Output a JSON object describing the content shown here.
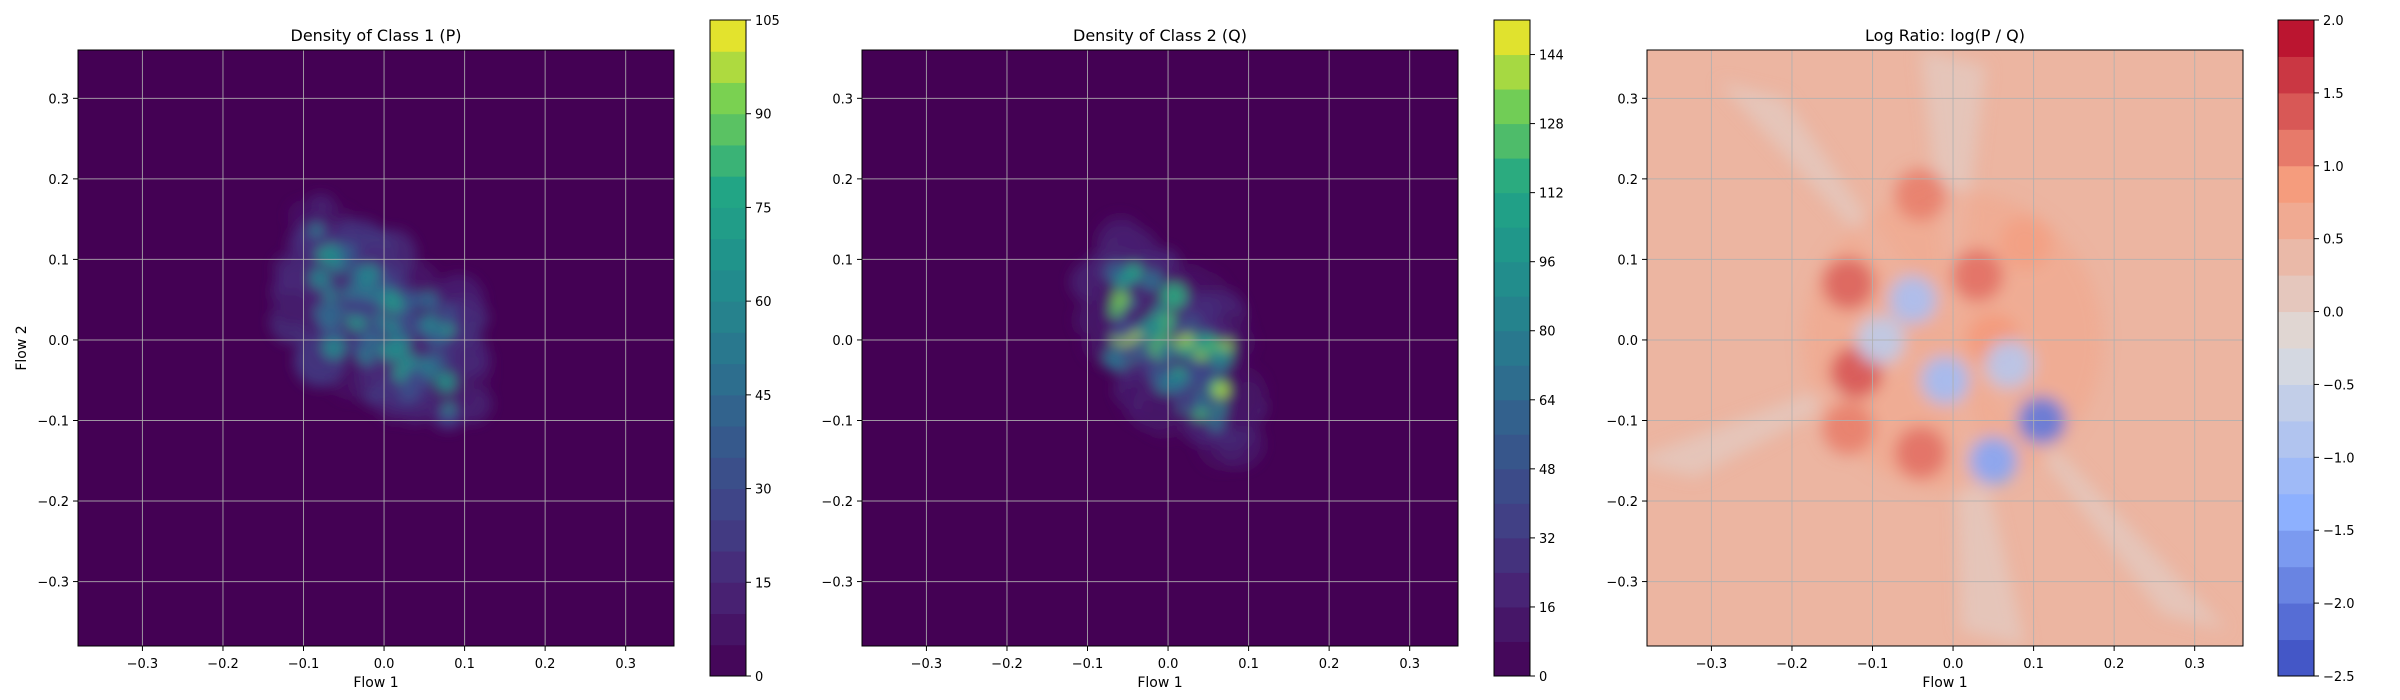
{
  "chart_data": [
    {
      "type": "heatmap",
      "title": "Density of Class 1 (P)",
      "xlabel": "Flow 1",
      "ylabel": "Flow 2",
      "xlim": [
        -0.38,
        0.36
      ],
      "ylim": [
        -0.38,
        0.36
      ],
      "xticks": [
        "−0.3",
        "−0.2",
        "−0.1",
        "0.0",
        "0.1",
        "0.2",
        "0.3"
      ],
      "yticks": [
        "−0.3",
        "−0.2",
        "−0.1",
        "0.0",
        "0.1",
        "0.2",
        "0.3"
      ],
      "tick_values": [
        -0.3,
        -0.2,
        -0.1,
        0.0,
        0.1,
        0.2,
        0.3
      ],
      "grid": true,
      "colormap": "viridis",
      "colorbar": {
        "min": 0,
        "max": 105,
        "ticks": [
          "0",
          "15",
          "30",
          "45",
          "60",
          "75",
          "90",
          "105"
        ],
        "levels": 21
      },
      "cluster": {
        "center": [
          0.0,
          0.02
        ],
        "spread": [
          0.1,
          0.08
        ],
        "peak_value": 75
      },
      "background_color": "#440154"
    },
    {
      "type": "heatmap",
      "title": "Density of Class 2 (Q)",
      "xlabel": "Flow 1",
      "ylabel": "",
      "xlim": [
        -0.38,
        0.36
      ],
      "ylim": [
        -0.38,
        0.36
      ],
      "xticks": [
        "−0.3",
        "−0.2",
        "−0.1",
        "0.0",
        "0.1",
        "0.2",
        "0.3"
      ],
      "yticks": [
        "−0.3",
        "−0.2",
        "−0.1",
        "0.0",
        "0.1",
        "0.2",
        "0.3"
      ],
      "tick_values": [
        -0.3,
        -0.2,
        -0.1,
        0.0,
        0.1,
        0.2,
        0.3
      ],
      "grid": true,
      "colormap": "viridis",
      "colorbar": {
        "min": 0,
        "max": 152,
        "ticks": [
          "0",
          "16",
          "32",
          "48",
          "64",
          "80",
          "96",
          "112",
          "128",
          "144"
        ],
        "levels": 19
      },
      "cluster": {
        "center": [
          0.0,
          0.0
        ],
        "spread": [
          0.08,
          0.08
        ],
        "peak_value": 150
      },
      "background_color": "#440154"
    },
    {
      "type": "heatmap",
      "title": "Log Ratio: log(P / Q)",
      "xlabel": "Flow 1",
      "ylabel": "",
      "xlim": [
        -0.38,
        0.36
      ],
      "ylim": [
        -0.38,
        0.36
      ],
      "xticks": [
        "−0.3",
        "−0.2",
        "−0.1",
        "0.0",
        "0.1",
        "0.2",
        "0.3"
      ],
      "yticks": [
        "−0.3",
        "−0.2",
        "−0.1",
        "0.0",
        "0.1",
        "0.2",
        "0.3"
      ],
      "tick_values": [
        -0.3,
        -0.2,
        -0.1,
        0.0,
        0.1,
        0.2,
        0.3
      ],
      "grid": true,
      "colormap": "coolwarm",
      "colorbar": {
        "min": -2.5,
        "max": 2.0,
        "ticks": [
          "−2.5",
          "−2.0",
          "−1.5",
          "−1.0",
          "−0.5",
          "0.0",
          "0.5",
          "1.0",
          "1.5",
          "2.0"
        ],
        "levels": 18
      },
      "background_value": 0.45,
      "hot_spots": [
        {
          "x": -0.13,
          "y": 0.07,
          "value": 1.3
        },
        {
          "x": -0.12,
          "y": -0.04,
          "value": 1.4
        },
        {
          "x": -0.13,
          "y": -0.11,
          "value": 1.1
        },
        {
          "x": -0.04,
          "y": 0.18,
          "value": 1.1
        },
        {
          "x": 0.03,
          "y": 0.08,
          "value": 1.2
        },
        {
          "x": -0.04,
          "y": -0.14,
          "value": 1.2
        },
        {
          "x": 0.05,
          "y": 0.0,
          "value": 0.9
        },
        {
          "x": 0.09,
          "y": 0.12,
          "value": 0.8
        }
      ],
      "cold_spots": [
        {
          "x": 0.11,
          "y": -0.1,
          "value": -2.0
        },
        {
          "x": 0.05,
          "y": -0.15,
          "value": -1.5
        },
        {
          "x": -0.05,
          "y": 0.05,
          "value": -1.0
        },
        {
          "x": -0.01,
          "y": -0.05,
          "value": -1.1
        },
        {
          "x": -0.09,
          "y": 0.0,
          "value": -0.7
        },
        {
          "x": 0.07,
          "y": -0.03,
          "value": -0.8
        }
      ]
    }
  ]
}
